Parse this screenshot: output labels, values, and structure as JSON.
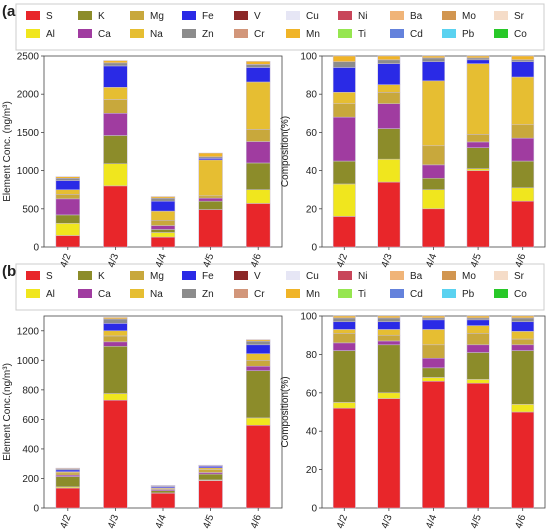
{
  "panels": [
    {
      "label": "(a)"
    },
    {
      "label": "(b)"
    }
  ],
  "legend": [
    {
      "name": "S",
      "color": "#e8262a"
    },
    {
      "name": "K",
      "color": "#8c8c2a"
    },
    {
      "name": "Mg",
      "color": "#c8a83c"
    },
    {
      "name": "Fe",
      "color": "#2a2ae6"
    },
    {
      "name": "V",
      "color": "#8c2828"
    },
    {
      "name": "Cu",
      "color": "#e6e6f5"
    },
    {
      "name": "Ni",
      "color": "#c8465a"
    },
    {
      "name": "Ba",
      "color": "#f0b478"
    },
    {
      "name": "Mo",
      "color": "#d29650"
    },
    {
      "name": "Sr",
      "color": "#f5dcc8"
    },
    {
      "name": "Al",
      "color": "#f0e61e"
    },
    {
      "name": "Ca",
      "color": "#a03ca0"
    },
    {
      "name": "Na",
      "color": "#e6be32"
    },
    {
      "name": "Zn",
      "color": "#8c8c8c"
    },
    {
      "name": "Cr",
      "color": "#d2967a"
    },
    {
      "name": "Mn",
      "color": "#f0b428"
    },
    {
      "name": "Ti",
      "color": "#96e650"
    },
    {
      "name": "Cd",
      "color": "#6482dc"
    },
    {
      "name": "Pb",
      "color": "#5ad2f0"
    },
    {
      "name": "Co",
      "color": "#28c828"
    }
  ],
  "chart_data": [
    {
      "type": "bar",
      "stacked": true,
      "panel": "(a)",
      "categories": [
        "4/2",
        "4/3",
        "4/4",
        "4/5",
        "4/6"
      ],
      "ylabel": "Element Conc. (ng/m³)",
      "ylim": [
        0,
        2500
      ],
      "yticks": [
        0,
        500,
        1000,
        1500,
        2000,
        2500
      ],
      "series": [
        {
          "name": "S",
          "values": [
            150,
            800,
            130,
            490,
            570
          ]
        },
        {
          "name": "Al",
          "values": [
            160,
            290,
            60,
            0,
            180
          ]
        },
        {
          "name": "K",
          "values": [
            110,
            370,
            40,
            110,
            350
          ]
        },
        {
          "name": "Ca",
          "values": [
            210,
            290,
            50,
            40,
            280
          ]
        },
        {
          "name": "Mg",
          "values": [
            60,
            180,
            70,
            30,
            160
          ]
        },
        {
          "name": "Na",
          "values": [
            60,
            160,
            120,
            470,
            620
          ]
        },
        {
          "name": "Fe",
          "values": [
            120,
            280,
            130,
            20,
            190
          ]
        },
        {
          "name": "Zn",
          "values": [
            30,
            40,
            40,
            20,
            40
          ]
        },
        {
          "name": "Mn",
          "values": [
            20,
            30,
            20,
            50,
            40
          ]
        }
      ]
    },
    {
      "type": "bar",
      "stacked": true,
      "panel": "(a)",
      "categories": [
        "4/2",
        "4/3",
        "4/4",
        "4/5",
        "4/6"
      ],
      "ylabel": "Composition(%)",
      "ylim": [
        0,
        100
      ],
      "yticks": [
        0,
        20,
        40,
        60,
        80,
        100
      ],
      "series": [
        {
          "name": "S",
          "values": [
            16,
            34,
            20,
            40,
            24
          ]
        },
        {
          "name": "Al",
          "values": [
            17,
            12,
            10,
            1,
            7
          ]
        },
        {
          "name": "K",
          "values": [
            12,
            16,
            6,
            11,
            14
          ]
        },
        {
          "name": "Ca",
          "values": [
            23,
            13,
            7,
            3,
            12
          ]
        },
        {
          "name": "Mg",
          "values": [
            7,
            6,
            10,
            4,
            7
          ]
        },
        {
          "name": "Na",
          "values": [
            6,
            4,
            34,
            37,
            25
          ]
        },
        {
          "name": "Fe",
          "values": [
            13,
            11,
            10,
            2,
            8
          ]
        },
        {
          "name": "Zn",
          "values": [
            3,
            2,
            2,
            1,
            1
          ]
        },
        {
          "name": "Mn",
          "values": [
            3,
            2,
            1,
            1,
            2
          ]
        }
      ]
    },
    {
      "type": "bar",
      "stacked": true,
      "panel": "(b)",
      "categories": [
        "4/2",
        "4/3",
        "4/4",
        "4/5",
        "4/6"
      ],
      "ylabel": "Element Conc.(ng/m³)",
      "ylim": [
        0,
        1300
      ],
      "yticks": [
        0,
        200,
        400,
        600,
        800,
        1000,
        1200
      ],
      "series": [
        {
          "name": "S",
          "values": [
            135,
            730,
            100,
            185,
            560
          ]
        },
        {
          "name": "Al",
          "values": [
            8,
            45,
            2,
            5,
            50
          ]
        },
        {
          "name": "K",
          "values": [
            70,
            320,
            15,
            40,
            320
          ]
        },
        {
          "name": "Ca",
          "values": [
            10,
            30,
            8,
            10,
            30
          ]
        },
        {
          "name": "Mg",
          "values": [
            15,
            40,
            6,
            20,
            40
          ]
        },
        {
          "name": "Na",
          "values": [
            8,
            35,
            6,
            12,
            45
          ]
        },
        {
          "name": "Fe",
          "values": [
            12,
            50,
            8,
            10,
            60
          ]
        },
        {
          "name": "Zn",
          "values": [
            7,
            30,
            5,
            5,
            25
          ]
        },
        {
          "name": "Mn",
          "values": [
            5,
            10,
            3,
            3,
            10
          ]
        }
      ]
    },
    {
      "type": "bar",
      "stacked": true,
      "panel": "(b)",
      "categories": [
        "4/2",
        "4/3",
        "4/4",
        "4/5",
        "4/6"
      ],
      "ylabel": "Composition(%)",
      "ylim": [
        0,
        100
      ],
      "yticks": [
        0,
        20,
        40,
        60,
        80,
        100
      ],
      "series": [
        {
          "name": "S",
          "values": [
            52,
            57,
            66,
            65,
            50
          ]
        },
        {
          "name": "Al",
          "values": [
            3,
            3,
            2,
            2,
            4
          ]
        },
        {
          "name": "K",
          "values": [
            27,
            25,
            5,
            14,
            28
          ]
        },
        {
          "name": "Ca",
          "values": [
            4,
            2,
            5,
            4,
            3
          ]
        },
        {
          "name": "Mg",
          "values": [
            5,
            3,
            7,
            6,
            3
          ]
        },
        {
          "name": "Na",
          "values": [
            2,
            3,
            8,
            4,
            4
          ]
        },
        {
          "name": "Fe",
          "values": [
            4,
            4,
            5,
            3,
            5
          ]
        },
        {
          "name": "Zn",
          "values": [
            2,
            2,
            1,
            1,
            2
          ]
        },
        {
          "name": "Mn",
          "values": [
            1,
            1,
            1,
            1,
            1
          ]
        }
      ]
    }
  ]
}
